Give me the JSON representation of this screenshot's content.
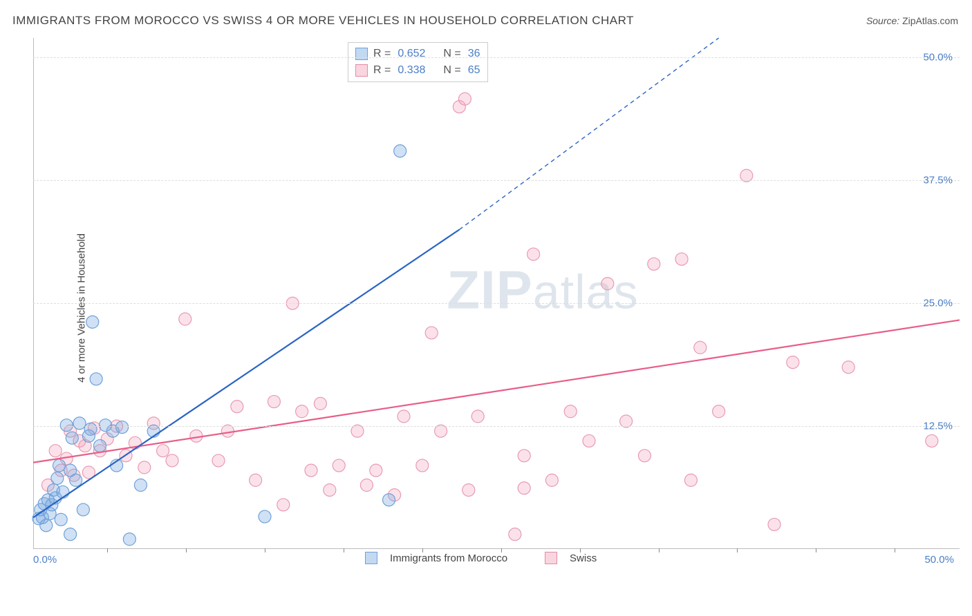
{
  "title": "IMMIGRANTS FROM MOROCCO VS SWISS 4 OR MORE VEHICLES IN HOUSEHOLD CORRELATION CHART",
  "source_label": "Source:",
  "source_value": "ZipAtlas.com",
  "ylabel": "4 or more Vehicles in Household",
  "watermark_bold": "ZIP",
  "watermark_rest": "atlas",
  "chart": {
    "type": "scatter",
    "xlim": [
      0,
      50
    ],
    "ylim": [
      0,
      52
    ],
    "background_color": "#ffffff",
    "grid_color": "#dddddd",
    "axis_color": "#bbbbbb",
    "tick_label_color": "#4a7ec7",
    "x_ticks": {
      "start_pct": 8,
      "step_pct": 8.5,
      "count": 11
    },
    "y_gridlines": [
      12.5,
      25.0,
      37.5,
      50.0
    ],
    "y_tick_labels": [
      "12.5%",
      "25.0%",
      "37.5%",
      "50.0%"
    ],
    "x_min_label": "0.0%",
    "x_max_label": "50.0%",
    "marker_radius": 9,
    "series": [
      {
        "name": "Immigrants from Morocco",
        "color_fill": "rgba(120,170,225,0.35)",
        "color_stroke": "#6fa0d8",
        "r": 0.652,
        "n": 36,
        "trend": {
          "solid": {
            "x1": 0,
            "y1": 3.2,
            "x2": 23,
            "y2": 32.5
          },
          "dash": {
            "x1": 23,
            "y1": 32.5,
            "x2": 37,
            "y2": 52
          },
          "color": "#2a64c4"
        },
        "points": [
          [
            0.3,
            3.1
          ],
          [
            0.4,
            4.0
          ],
          [
            0.5,
            3.2
          ],
          [
            0.6,
            4.6
          ],
          [
            0.7,
            2.4
          ],
          [
            0.8,
            5.0
          ],
          [
            0.9,
            3.6
          ],
          [
            1.0,
            4.5
          ],
          [
            1.1,
            6.0
          ],
          [
            1.2,
            5.2
          ],
          [
            1.3,
            7.2
          ],
          [
            1.4,
            8.5
          ],
          [
            1.5,
            3.0
          ],
          [
            1.6,
            5.8
          ],
          [
            1.8,
            12.6
          ],
          [
            2.0,
            8.0
          ],
          [
            2.1,
            11.3
          ],
          [
            2.3,
            7.0
          ],
          [
            2.5,
            12.8
          ],
          [
            2.7,
            4.0
          ],
          [
            3.0,
            11.5
          ],
          [
            3.1,
            12.2
          ],
          [
            3.2,
            23.1
          ],
          [
            3.4,
            17.3
          ],
          [
            3.6,
            10.5
          ],
          [
            3.9,
            12.6
          ],
          [
            4.3,
            12.0
          ],
          [
            4.5,
            8.5
          ],
          [
            4.8,
            12.4
          ],
          [
            5.2,
            1.0
          ],
          [
            5.8,
            6.5
          ],
          [
            6.5,
            12.0
          ],
          [
            2.0,
            1.5
          ],
          [
            12.5,
            3.3
          ],
          [
            19.2,
            5.0
          ],
          [
            19.8,
            40.5
          ]
        ]
      },
      {
        "name": "Swiss",
        "color_fill": "rgba(242,160,185,0.3)",
        "color_stroke": "#e89ab0",
        "r": 0.338,
        "n": 65,
        "trend": {
          "solid": {
            "x1": 0,
            "y1": 8.8,
            "x2": 50,
            "y2": 23.3
          },
          "color": "#e85d87"
        },
        "points": [
          [
            0.8,
            6.5
          ],
          [
            1.2,
            10.0
          ],
          [
            1.5,
            8.0
          ],
          [
            1.8,
            9.2
          ],
          [
            2.0,
            12.0
          ],
          [
            2.2,
            7.5
          ],
          [
            2.5,
            11.0
          ],
          [
            2.8,
            10.5
          ],
          [
            3.0,
            7.8
          ],
          [
            3.3,
            12.3
          ],
          [
            3.6,
            10.0
          ],
          [
            4.0,
            11.2
          ],
          [
            4.5,
            12.5
          ],
          [
            5.0,
            9.5
          ],
          [
            5.5,
            10.8
          ],
          [
            6.0,
            8.3
          ],
          [
            6.5,
            12.8
          ],
          [
            7.0,
            10.0
          ],
          [
            7.5,
            9.0
          ],
          [
            8.2,
            23.4
          ],
          [
            8.8,
            11.5
          ],
          [
            10.0,
            9.0
          ],
          [
            10.5,
            12.0
          ],
          [
            11.0,
            14.5
          ],
          [
            12.0,
            7.0
          ],
          [
            13.0,
            15.0
          ],
          [
            13.5,
            4.5
          ],
          [
            14.0,
            25.0
          ],
          [
            14.5,
            14.0
          ],
          [
            15.0,
            8.0
          ],
          [
            15.5,
            14.8
          ],
          [
            16.0,
            6.0
          ],
          [
            16.5,
            8.5
          ],
          [
            17.5,
            12.0
          ],
          [
            18.0,
            6.5
          ],
          [
            18.5,
            8.0
          ],
          [
            19.5,
            5.5
          ],
          [
            20.0,
            13.5
          ],
          [
            21.0,
            8.5
          ],
          [
            21.5,
            22.0
          ],
          [
            22.0,
            12.0
          ],
          [
            23.0,
            45.0
          ],
          [
            23.3,
            45.8
          ],
          [
            23.5,
            6.0
          ],
          [
            24.0,
            13.5
          ],
          [
            26.0,
            1.5
          ],
          [
            26.5,
            9.5
          ],
          [
            27.0,
            30.0
          ],
          [
            28.0,
            7.0
          ],
          [
            29.0,
            14.0
          ],
          [
            30.0,
            11.0
          ],
          [
            31.0,
            27.0
          ],
          [
            32.0,
            13.0
          ],
          [
            33.0,
            9.5
          ],
          [
            33.5,
            29.0
          ],
          [
            35.0,
            29.5
          ],
          [
            35.5,
            7.0
          ],
          [
            36.0,
            20.5
          ],
          [
            37.0,
            14.0
          ],
          [
            38.5,
            38.0
          ],
          [
            40.0,
            2.5
          ],
          [
            41.0,
            19.0
          ],
          [
            44.0,
            18.5
          ],
          [
            48.5,
            11.0
          ],
          [
            26.5,
            6.2
          ]
        ]
      }
    ]
  },
  "legend_box": {
    "rows": [
      {
        "swatch": "blue",
        "r_label": "R =",
        "r_val": "0.652",
        "n_label": "N =",
        "n_val": "36"
      },
      {
        "swatch": "pink",
        "r_label": "R =",
        "r_val": "0.338",
        "n_label": "N =",
        "n_val": "65"
      }
    ]
  },
  "bottom_legend": [
    {
      "swatch": "blue",
      "label": "Immigrants from Morocco"
    },
    {
      "swatch": "pink",
      "label": "Swiss"
    }
  ]
}
